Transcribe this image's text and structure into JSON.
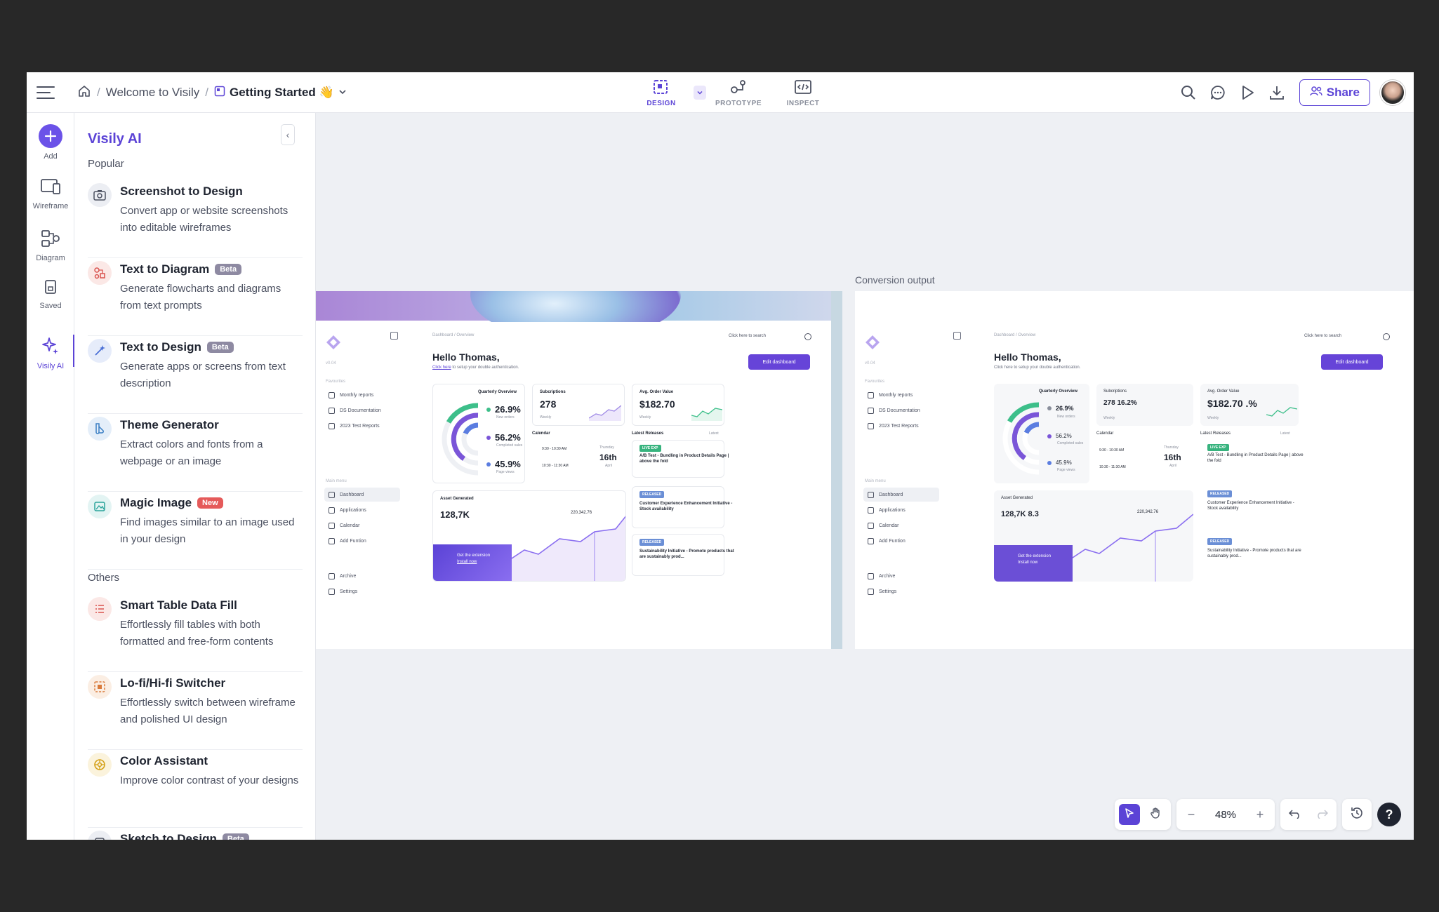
{
  "breadcrumb": {
    "project": "Welcome to Visily",
    "page": "Getting Started 👋"
  },
  "modes": [
    {
      "label": "DESIGN"
    },
    {
      "label": "PROTOTYPE"
    },
    {
      "label": "INSPECT"
    }
  ],
  "share_label": "Share",
  "rail": {
    "add": "Add",
    "wireframe": "Wireframe",
    "diagram": "Diagram",
    "saved": "Saved",
    "visily_ai": "Visily AI"
  },
  "panel": {
    "title": "Visily AI",
    "popular_label": "Popular",
    "others_label": "Others",
    "popular": [
      {
        "name": "Screenshot to Design",
        "desc": "Convert app or website screenshots into editable wireframes",
        "badge": ""
      },
      {
        "name": "Text to Diagram",
        "desc": "Generate flowcharts and diagrams from text prompts",
        "badge": "Beta"
      },
      {
        "name": "Text to Design",
        "desc": "Generate apps or screens from text description",
        "badge": "Beta"
      },
      {
        "name": "Theme Generator",
        "desc": "Extract colors and fonts from a webpage or an image",
        "badge": ""
      },
      {
        "name": "Magic Image",
        "desc": "Find images similar to an image used in your design",
        "badge": "New"
      }
    ],
    "others": [
      {
        "name": "Smart Table Data Fill",
        "desc": "Effortlessly fill tables with both formatted and free-form contents",
        "badge": ""
      },
      {
        "name": "Lo-fi/Hi-fi Switcher",
        "desc": "Effortlessly switch between wireframe and polished UI design",
        "badge": ""
      },
      {
        "name": "Color Assistant",
        "desc": "Improve color contrast of your designs",
        "badge": ""
      },
      {
        "name": "Sketch to Design",
        "desc": "",
        "badge": "Beta"
      }
    ]
  },
  "canvas": {
    "conversion_label": "Conversion output",
    "mock": {
      "version": "v0.04",
      "favourites_label": "Favourites",
      "favourites": [
        "Monthly reports",
        "DS Documentation",
        "2023 Test Reports"
      ],
      "main_menu_label": "Main menu",
      "menu": [
        "Dashboard",
        "Applications",
        "Calendar",
        "Add Funtion"
      ],
      "footer": [
        "Archive",
        "Settings"
      ],
      "crumb": "Dashboard / Overview",
      "hello": "Hello Thomas,",
      "sub_link": "Click here",
      "sub_rest": " to setup your double authentication.",
      "search": "Click here to search",
      "edit": "Edit dashboard",
      "quarterly": "Quarterly Overview",
      "qo": [
        {
          "v": "26.9%",
          "l": "New orders"
        },
        {
          "v": "56.2%",
          "l": "Completed sales"
        },
        {
          "v": "45.9%",
          "l": "Page views"
        }
      ],
      "subs_title": "Subcriptions",
      "subs_val": "278",
      "weekly": "Weekly",
      "aov_title": "Avg. Order Value",
      "aov_val": "$182.70",
      "calendar": "Calendar",
      "cal_slots": [
        "9:30 - 10:30 AM",
        "10:30 - 11:30 AM"
      ],
      "cal_day": "Thursday",
      "cal_date": "16th",
      "cal_month": "April",
      "releases": "Latest Releases",
      "latest": "Latest",
      "live_exp": "LIVE EXP",
      "released": "RELEASED",
      "rel_titles": [
        "A/B Test - Bundling in Product Details Page | above the fold",
        "Customer Experience Enhancement Initiative - Stock availability",
        "Sustainability Initiative - Promote products that are sustainably prod..."
      ],
      "asset_title": "Asset Generated",
      "asset_val": "128,7K",
      "asset_peak": "220,342.76",
      "ext_line1": "Get the extension",
      "ext_line2": "Install now",
      "right_subs": "278 16.2%",
      "right_aov": "$182.70 .%",
      "right_asset": "128,7K 8.3"
    }
  },
  "zoom": "48%",
  "colors": {
    "accent": "#5b43d6",
    "canvas_bg": "#eef0f4"
  }
}
